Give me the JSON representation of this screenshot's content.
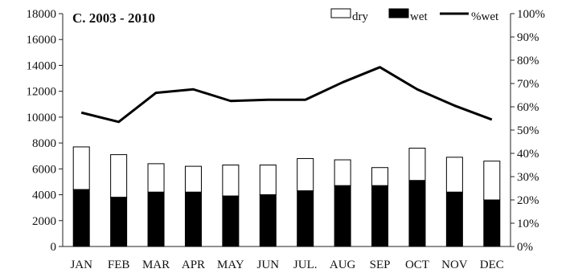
{
  "chart_data": {
    "type": "bar",
    "title": "C. 2003 - 2010",
    "categories": [
      "JAN",
      "FEB",
      "MAR",
      "APR",
      "MAY",
      "JUN",
      "JUL.",
      "AUG",
      "SEP",
      "OCT",
      "NOV",
      "DEC"
    ],
    "series": [
      {
        "name": "wet",
        "kind": "stacked-bar",
        "axis": "left",
        "color": "#000000",
        "values": [
          4400,
          3800,
          4200,
          4200,
          3900,
          4000,
          4300,
          4700,
          4700,
          5100,
          4200,
          3600
        ]
      },
      {
        "name": "dry",
        "kind": "stacked-bar",
        "axis": "left",
        "color": "#ffffff",
        "values": [
          3300,
          3300,
          2200,
          2000,
          2400,
          2300,
          2500,
          2000,
          1400,
          2500,
          2700,
          3000
        ]
      },
      {
        "name": "%wet",
        "kind": "line",
        "axis": "right",
        "color": "#000000",
        "values": [
          57.5,
          53.5,
          66,
          67.5,
          62.5,
          63,
          63,
          70.5,
          77,
          67.5,
          60.5,
          54.5
        ]
      }
    ],
    "ylim_left": [
      0,
      18000
    ],
    "yticks_left": [
      "0",
      "2000",
      "4000",
      "6000",
      "8000",
      "10000",
      "12000",
      "14000",
      "16000",
      "18000"
    ],
    "ylim_right": [
      0,
      100
    ],
    "yticks_right": [
      "0%",
      "10%",
      "20%",
      "30%",
      "40%",
      "50%",
      "60%",
      "70%",
      "80%",
      "90%",
      "100%"
    ],
    "legend": {
      "placement": "top-right",
      "items": [
        "dry",
        "wet",
        "%wet"
      ]
    },
    "grid": false
  }
}
